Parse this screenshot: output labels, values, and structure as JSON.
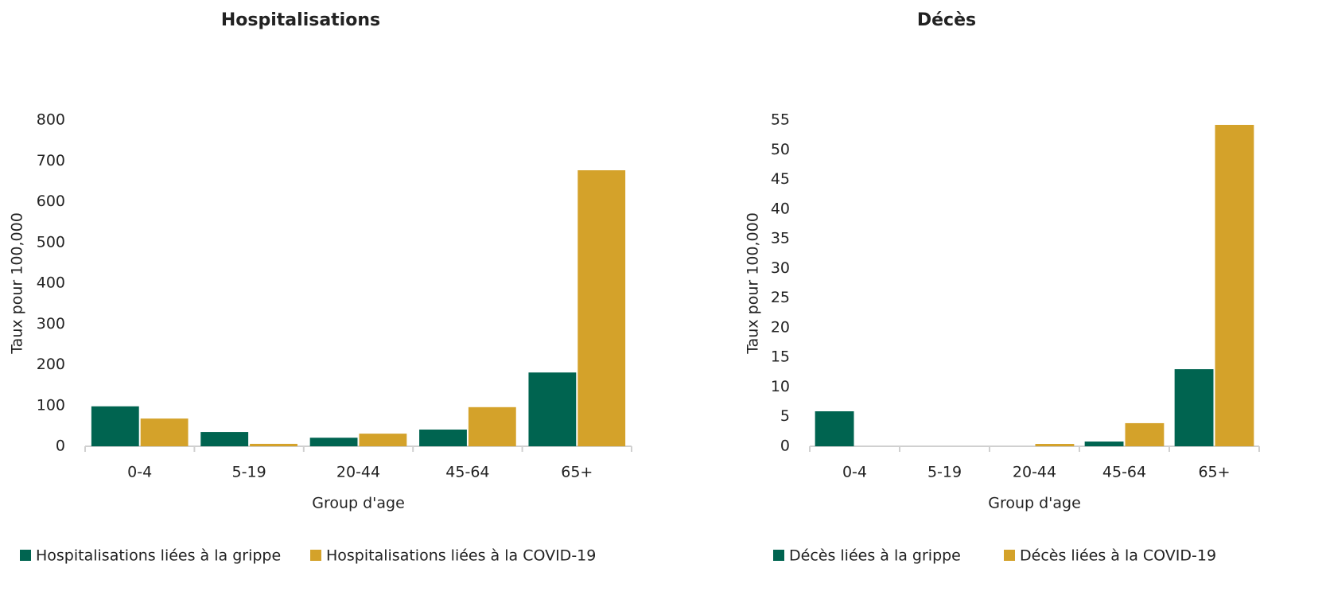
{
  "chart_data": [
    {
      "type": "bar",
      "title": "Hospitalisations",
      "x_label": "Group d'age",
      "y_label": "Taux pour 100,000",
      "categories": [
        "0-4",
        "5-19",
        "20-44",
        "45-64",
        "65+"
      ],
      "series": [
        {
          "name": "Hospitalisations liées à la grippe",
          "color": "#006450",
          "values": [
            98,
            35,
            21,
            41,
            181
          ]
        },
        {
          "name": "Hospitalisations liées à la COVID-19",
          "color": "#d4a22a",
          "values": [
            68,
            6,
            31,
            96,
            677
          ]
        }
      ],
      "ylim": [
        0,
        800
      ],
      "yticks": [
        0,
        100,
        200,
        300,
        400,
        500,
        600,
        700,
        800
      ]
    },
    {
      "type": "bar",
      "title": "Décès",
      "x_label": "Group d'age",
      "y_label": "Taux pour 100,000",
      "categories": [
        "0-4",
        "5-19",
        "20-44",
        "45-64",
        "65+"
      ],
      "series": [
        {
          "name": "Décès liées à la grippe",
          "color": "#006450",
          "values": [
            5.9,
            0,
            0,
            0.8,
            13
          ]
        },
        {
          "name": "Décès liées à la COVID-19",
          "color": "#d4a22a",
          "values": [
            0,
            0,
            0.4,
            3.9,
            54.2
          ]
        }
      ],
      "ylim": [
        0,
        55
      ],
      "yticks": [
        0,
        5,
        10,
        15,
        20,
        25,
        30,
        35,
        40,
        45,
        50,
        55
      ]
    }
  ]
}
